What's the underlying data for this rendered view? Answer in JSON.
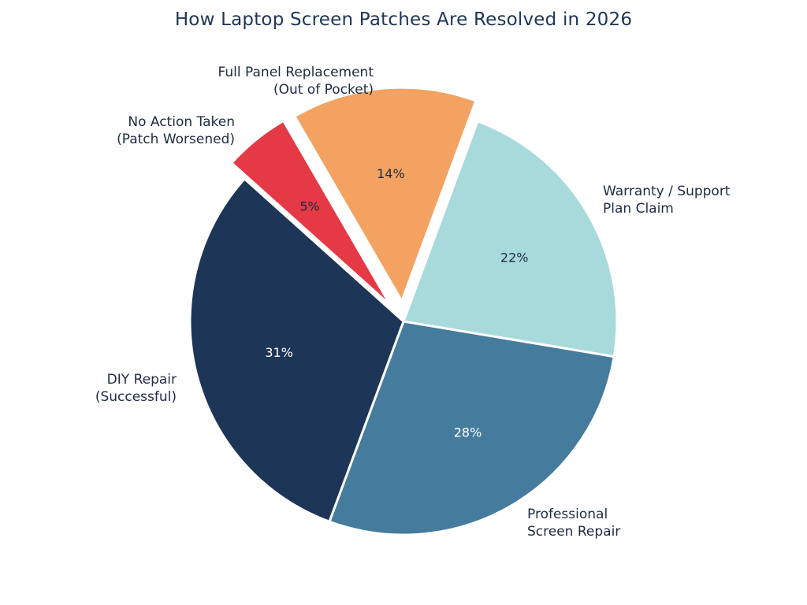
{
  "chart_data": {
    "type": "pie",
    "title": "How Laptop Screen Patches Are Resolved in 2026",
    "slices": [
      {
        "label": [
          "Warranty / Support",
          "Plan Claim"
        ],
        "value": 22,
        "pct_label": "22%",
        "color": "#a8dadc",
        "text_color": "#1e2a44",
        "exploded": false
      },
      {
        "label": [
          "Professional",
          "Screen Repair"
        ],
        "value": 28,
        "pct_label": "28%",
        "color": "#457b9d",
        "text_color": "#ffffff",
        "exploded": false
      },
      {
        "label": [
          "DIY Repair",
          "(Successful)"
        ],
        "value": 31,
        "pct_label": "31%",
        "color": "#1d3557",
        "text_color": "#ffffff",
        "exploded": false
      },
      {
        "label": [
          "No Action Taken",
          "(Patch Worsened)"
        ],
        "value": 5,
        "pct_label": "5%",
        "color": "#e63946",
        "text_color": "#1e2a44",
        "exploded": true
      },
      {
        "label": [
          "Full Panel Replacement",
          "(Out of Pocket)"
        ],
        "value": 14,
        "pct_label": "14%",
        "color": "#f4a261",
        "text_color": "#1e2a44",
        "exploded": true
      }
    ],
    "start_angle_deg": 20.3,
    "direction": "clockwise"
  }
}
